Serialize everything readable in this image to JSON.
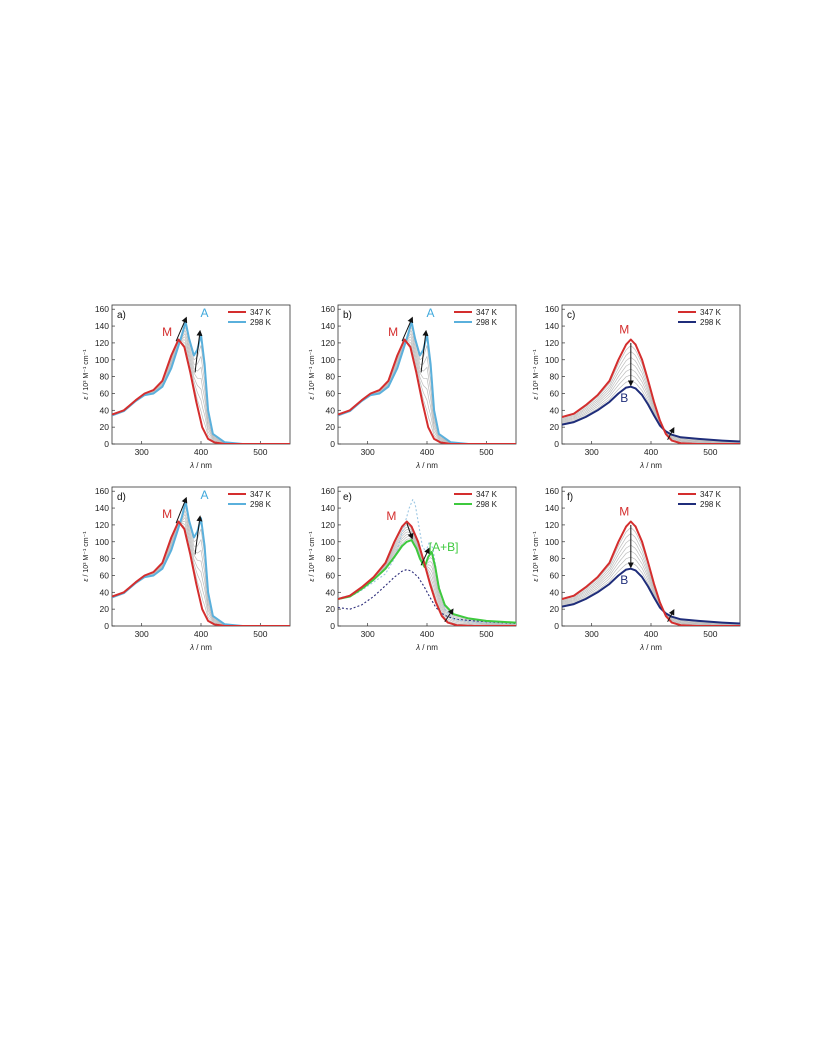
{
  "figure": {
    "axis_text": {
      "ylabel_italic": "ε",
      "ylabel_rest": " / 10³ M⁻¹ cm⁻¹",
      "xlabel_italic": "λ",
      "xlabel_rest": " / nm"
    }
  },
  "chart_data": [
    {
      "panel_label": "a)",
      "type": "line",
      "xlim": [
        250,
        550
      ],
      "ylim": [
        0,
        165
      ],
      "xticks": [
        "300",
        "400",
        "500"
      ],
      "yticks": [
        "0",
        "20",
        "40",
        "60",
        "80",
        "100",
        "120",
        "140",
        "160"
      ],
      "legend": "top-right",
      "series": [
        {
          "name": "347 K",
          "color": "#d42e2e",
          "x": [
            250,
            270,
            290,
            305,
            320,
            335,
            350,
            362,
            372,
            382,
            392,
            402,
            412,
            422,
            440,
            470,
            500,
            550
          ],
          "y": [
            35,
            40,
            52,
            60,
            64,
            75,
            105,
            124,
            115,
            85,
            50,
            20,
            6,
            2,
            0,
            0,
            0,
            0
          ]
        },
        {
          "name": "298 K",
          "color": "#5ab0dc",
          "x": [
            250,
            270,
            290,
            305,
            320,
            335,
            350,
            360,
            368,
            374,
            380,
            388,
            394,
            400,
            406,
            412,
            420,
            440,
            470,
            550
          ],
          "y": [
            34,
            39,
            51,
            58,
            60,
            68,
            90,
            112,
            130,
            145,
            125,
            105,
            112,
            130,
            95,
            40,
            12,
            2,
            0,
            0
          ]
        }
      ],
      "intermediates": 7,
      "annotations": [
        {
          "text": "M",
          "color": "#d42e2e",
          "x": 343,
          "y": 128
        },
        {
          "text": "A",
          "color": "#3ea8dc",
          "x": 406,
          "y": 151
        }
      ],
      "arrows": [
        {
          "from": [
            358,
            122
          ],
          "to": [
            374,
            148
          ]
        },
        {
          "from": [
            390,
            85
          ],
          "to": [
            398,
            132
          ]
        }
      ]
    },
    {
      "panel_label": "b)",
      "type": "line",
      "xlim": [
        250,
        550
      ],
      "ylim": [
        0,
        165
      ],
      "xticks": [
        "300",
        "400",
        "500"
      ],
      "yticks": [
        "0",
        "20",
        "40",
        "60",
        "80",
        "100",
        "120",
        "140",
        "160"
      ],
      "legend": "top-right",
      "series": [
        {
          "name": "347 K",
          "color": "#d42e2e",
          "x": [
            250,
            270,
            290,
            305,
            320,
            335,
            350,
            362,
            372,
            382,
            392,
            402,
            412,
            422,
            440,
            470,
            500,
            550
          ],
          "y": [
            35,
            40,
            52,
            60,
            64,
            75,
            105,
            124,
            115,
            85,
            50,
            20,
            6,
            2,
            0,
            0,
            0,
            0
          ]
        },
        {
          "name": "298 K",
          "color": "#5ab0dc",
          "x": [
            250,
            270,
            290,
            305,
            320,
            335,
            350,
            360,
            368,
            374,
            380,
            388,
            394,
            400,
            406,
            412,
            420,
            440,
            470,
            550
          ],
          "y": [
            34,
            39,
            51,
            58,
            60,
            68,
            90,
            112,
            130,
            145,
            125,
            105,
            112,
            130,
            95,
            40,
            12,
            2,
            0,
            0
          ]
        }
      ],
      "intermediates": 7,
      "annotations": [
        {
          "text": "M",
          "color": "#d42e2e",
          "x": 343,
          "y": 128
        },
        {
          "text": "A",
          "color": "#3ea8dc",
          "x": 406,
          "y": 151
        }
      ],
      "arrows": [
        {
          "from": [
            358,
            122
          ],
          "to": [
            374,
            148
          ]
        },
        {
          "from": [
            390,
            85
          ],
          "to": [
            398,
            132
          ]
        }
      ]
    },
    {
      "panel_label": "c)",
      "type": "line",
      "xlim": [
        250,
        550
      ],
      "ylim": [
        0,
        165
      ],
      "xticks": [
        "300",
        "400",
        "500"
      ],
      "yticks": [
        "0",
        "20",
        "40",
        "60",
        "80",
        "100",
        "120",
        "140",
        "160"
      ],
      "legend": "top-right",
      "series": [
        {
          "name": "347 K",
          "color": "#d42e2e",
          "x": [
            250,
            270,
            290,
            310,
            330,
            345,
            358,
            366,
            374,
            385,
            395,
            405,
            415,
            425,
            435,
            450,
            480,
            550
          ],
          "y": [
            32,
            36,
            46,
            58,
            75,
            100,
            118,
            124,
            118,
            100,
            76,
            50,
            28,
            12,
            4,
            1,
            0,
            0
          ]
        },
        {
          "name": "298 K",
          "color": "#1f2d7a",
          "x": [
            250,
            270,
            290,
            310,
            330,
            345,
            358,
            366,
            374,
            385,
            395,
            405,
            415,
            425,
            435,
            450,
            480,
            520,
            550
          ],
          "y": [
            23,
            26,
            32,
            40,
            50,
            60,
            67,
            68,
            66,
            58,
            47,
            34,
            22,
            15,
            11,
            8,
            6,
            4,
            3
          ]
        }
      ],
      "intermediates": 7,
      "annotations": [
        {
          "text": "M",
          "color": "#d42e2e",
          "x": 355,
          "y": 131
        },
        {
          "text": "B",
          "color": "#1f2d7a",
          "x": 355,
          "y": 50
        }
      ],
      "arrows": [
        {
          "from": [
            366,
            120
          ],
          "to": [
            366,
            72
          ]
        },
        {
          "from": [
            428,
            5
          ],
          "to": [
            437,
            17
          ]
        }
      ]
    },
    {
      "panel_label": "d)",
      "type": "line",
      "xlim": [
        250,
        550
      ],
      "ylim": [
        0,
        165
      ],
      "xticks": [
        "300",
        "400",
        "500"
      ],
      "yticks": [
        "0",
        "20",
        "40",
        "60",
        "80",
        "100",
        "120",
        "140",
        "160"
      ],
      "legend": "top-right",
      "series": [
        {
          "name": "347 K",
          "color": "#d42e2e",
          "x": [
            250,
            270,
            290,
            305,
            320,
            335,
            350,
            362,
            372,
            382,
            392,
            402,
            412,
            422,
            440,
            470,
            500,
            550
          ],
          "y": [
            35,
            40,
            52,
            60,
            64,
            75,
            105,
            124,
            115,
            85,
            50,
            20,
            6,
            2,
            0,
            0,
            0,
            0
          ]
        },
        {
          "name": "298 K",
          "color": "#5ab0dc",
          "x": [
            250,
            270,
            290,
            305,
            320,
            335,
            350,
            360,
            368,
            374,
            380,
            388,
            394,
            400,
            406,
            412,
            420,
            440,
            470,
            550
          ],
          "y": [
            34,
            39,
            51,
            58,
            60,
            68,
            90,
            112,
            130,
            148,
            125,
            105,
            112,
            128,
            95,
            40,
            12,
            2,
            0,
            0
          ]
        }
      ],
      "intermediates": 7,
      "annotations": [
        {
          "text": "M",
          "color": "#d42e2e",
          "x": 343,
          "y": 128
        },
        {
          "text": "A",
          "color": "#3ea8dc",
          "x": 406,
          "y": 151
        }
      ],
      "arrows": [
        {
          "from": [
            358,
            122
          ],
          "to": [
            374,
            150
          ]
        },
        {
          "from": [
            390,
            85
          ],
          "to": [
            398,
            128
          ]
        }
      ]
    },
    {
      "panel_label": "e)",
      "type": "line",
      "xlim": [
        250,
        550
      ],
      "ylim": [
        0,
        165
      ],
      "xticks": [
        "300",
        "400",
        "500"
      ],
      "yticks": [
        "0",
        "20",
        "40",
        "60",
        "80",
        "100",
        "120",
        "140",
        "160"
      ],
      "legend": "top-right",
      "series": [
        {
          "name": "347 K",
          "color": "#d42e2e",
          "x": [
            250,
            270,
            290,
            310,
            330,
            345,
            358,
            366,
            374,
            385,
            395,
            405,
            415,
            425,
            435,
            450,
            480,
            550
          ],
          "y": [
            32,
            36,
            46,
            58,
            75,
            100,
            118,
            124,
            118,
            100,
            76,
            50,
            28,
            12,
            4,
            1,
            0,
            0
          ]
        },
        {
          "name": "298 K",
          "color": "#3ec93e",
          "x": [
            250,
            270,
            290,
            310,
            330,
            345,
            358,
            366,
            374,
            382,
            388,
            396,
            402,
            408,
            414,
            420,
            430,
            445,
            470,
            500,
            550
          ],
          "y": [
            32,
            35,
            44,
            55,
            68,
            82,
            95,
            100,
            102,
            92,
            80,
            70,
            82,
            88,
            70,
            45,
            25,
            14,
            9,
            6,
            4
          ]
        },
        {
          "name": "",
          "color": "#9dc7e3",
          "dashed": true,
          "x": [
            250,
            280,
            310,
            330,
            345,
            360,
            370,
            376,
            380,
            386,
            392,
            398,
            404,
            410,
            418,
            430,
            445,
            470,
            500,
            550
          ],
          "y": [
            33,
            38,
            52,
            62,
            80,
            115,
            140,
            150,
            145,
            120,
            95,
            88,
            100,
            92,
            55,
            20,
            8,
            5,
            4,
            3
          ]
        },
        {
          "name": "",
          "color": "#2c2c7a",
          "dashed": true,
          "x": [
            250,
            270,
            290,
            310,
            330,
            345,
            358,
            366,
            374,
            385,
            395,
            405,
            415,
            425,
            435,
            450,
            480,
            520,
            550
          ],
          "y": [
            22,
            20,
            25,
            35,
            48,
            58,
            65,
            67,
            65,
            58,
            47,
            34,
            22,
            15,
            11,
            8,
            6,
            4,
            3
          ]
        }
      ],
      "intermediates": 7,
      "annotations": [
        {
          "text": "M",
          "color": "#d42e2e",
          "x": 340,
          "y": 126
        },
        {
          "text": "[A+B]",
          "color": "#3ec93e",
          "x": 428,
          "y": 89
        }
      ],
      "arrows": [
        {
          "from": [
            366,
            122
          ],
          "to": [
            374,
            106
          ]
        },
        {
          "from": [
            390,
            72
          ],
          "to": [
            402,
            90
          ]
        },
        {
          "from": [
            430,
            5
          ],
          "to": [
            442,
            18
          ]
        }
      ]
    },
    {
      "panel_label": "f)",
      "type": "line",
      "xlim": [
        250,
        550
      ],
      "ylim": [
        0,
        165
      ],
      "xticks": [
        "300",
        "400",
        "500"
      ],
      "yticks": [
        "0",
        "20",
        "40",
        "60",
        "80",
        "100",
        "120",
        "140",
        "160"
      ],
      "legend": "top-right",
      "series": [
        {
          "name": "347 K",
          "color": "#d42e2e",
          "x": [
            250,
            270,
            290,
            310,
            330,
            345,
            358,
            366,
            374,
            385,
            395,
            405,
            415,
            425,
            435,
            450,
            480,
            550
          ],
          "y": [
            32,
            36,
            46,
            58,
            75,
            100,
            118,
            124,
            118,
            100,
            76,
            50,
            28,
            12,
            4,
            1,
            0,
            0
          ]
        },
        {
          "name": "298 K",
          "color": "#1f2d7a",
          "x": [
            250,
            270,
            290,
            310,
            330,
            345,
            358,
            366,
            374,
            385,
            395,
            405,
            415,
            425,
            435,
            450,
            480,
            520,
            550
          ],
          "y": [
            23,
            26,
            32,
            40,
            50,
            60,
            67,
            68,
            66,
            58,
            47,
            34,
            22,
            15,
            11,
            8,
            6,
            4,
            3
          ]
        }
      ],
      "intermediates": 7,
      "annotations": [
        {
          "text": "M",
          "color": "#d42e2e",
          "x": 355,
          "y": 131
        },
        {
          "text": "B",
          "color": "#1f2d7a",
          "x": 355,
          "y": 50
        }
      ],
      "arrows": [
        {
          "from": [
            366,
            120
          ],
          "to": [
            366,
            72
          ]
        },
        {
          "from": [
            428,
            5
          ],
          "to": [
            437,
            17
          ]
        }
      ]
    }
  ]
}
